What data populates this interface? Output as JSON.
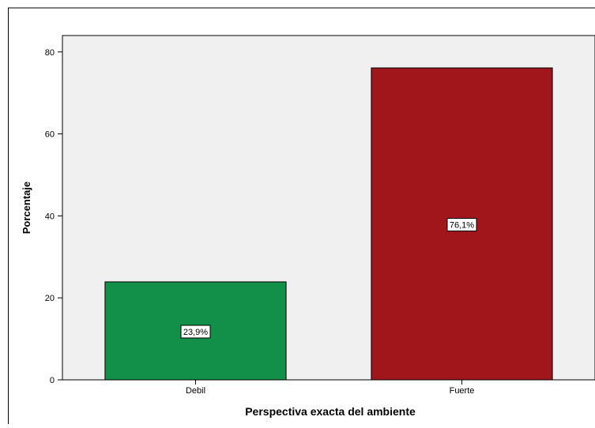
{
  "chart_data": {
    "type": "bar",
    "title": "",
    "xlabel": "Perspectiva exacta del ambiente",
    "ylabel": "Porcentaje",
    "categories": [
      "Debil",
      "Fuerte"
    ],
    "values": [
      23.9,
      76.1
    ],
    "data_labels": [
      "23,9%",
      "76,1%"
    ],
    "bar_colors": [
      "#12904a",
      "#a0161b"
    ],
    "ylim": [
      0,
      84
    ],
    "yticks": [
      0,
      20,
      40,
      60,
      80
    ],
    "ytick_labels": [
      "0",
      "20",
      "40",
      "60",
      "80"
    ],
    "plot_background": "#f0f0f0",
    "grid": false,
    "legend": "none"
  }
}
